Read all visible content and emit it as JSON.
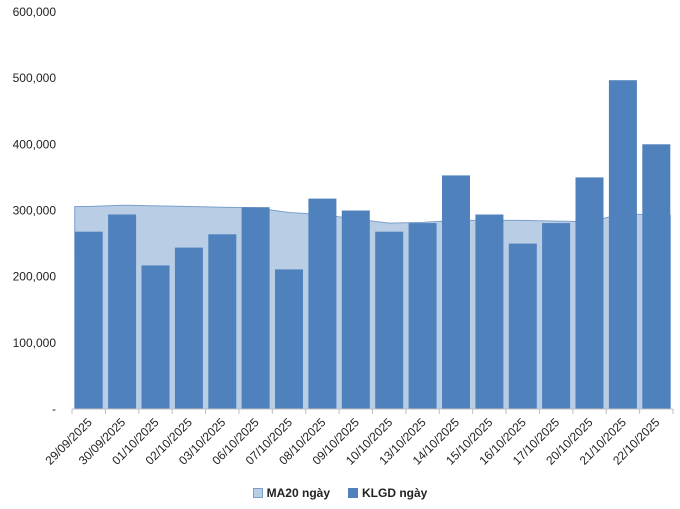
{
  "chart_data": {
    "type": "bar",
    "categories": [
      "29/09/2025",
      "30/09/2025",
      "01/10/2025",
      "02/10/2025",
      "03/10/2025",
      "06/10/2025",
      "07/10/2025",
      "08/10/2025",
      "09/10/2025",
      "10/10/2025",
      "13/10/2025",
      "14/10/2025",
      "15/10/2025",
      "16/10/2025",
      "17/10/2025",
      "20/10/2025",
      "21/10/2025",
      "22/10/2025"
    ],
    "series": [
      {
        "name": "KLGD ngày",
        "kind": "bar",
        "color": "#4f81bd",
        "values": [
          268000,
          294000,
          217000,
          244000,
          264000,
          305000,
          211000,
          318000,
          300000,
          268000,
          281000,
          353000,
          294000,
          250000,
          281000,
          350000,
          497000,
          400000
        ]
      },
      {
        "name": "MA20 ngày",
        "kind": "area",
        "color": "#b9cde5",
        "stroke": "#7ba0cd",
        "values": [
          306000,
          308000,
          307000,
          306000,
          305000,
          304000,
          297000,
          294000,
          287000,
          281000,
          282000,
          285000,
          285000,
          285000,
          284000,
          283000,
          295000,
          293000
        ]
      }
    ],
    "ylim": [
      0,
      600000
    ],
    "yticks": [
      {
        "value": 0,
        "label": "-"
      },
      {
        "value": 100000,
        "label": "100,000"
      },
      {
        "value": 200000,
        "label": "200,000"
      },
      {
        "value": 300000,
        "label": "300,000"
      },
      {
        "value": 400000,
        "label": "400,000"
      },
      {
        "value": 500000,
        "label": "500,000"
      },
      {
        "value": 600000,
        "label": "600,000"
      }
    ],
    "legend_position": "bottom",
    "grid": false
  },
  "legend": [
    {
      "label": "MA20 ngày",
      "color": "#b9cde5",
      "border": "#7ba0cd"
    },
    {
      "label": "KLGD ngày",
      "color": "#4f81bd",
      "border": "#4f81bd"
    }
  ]
}
